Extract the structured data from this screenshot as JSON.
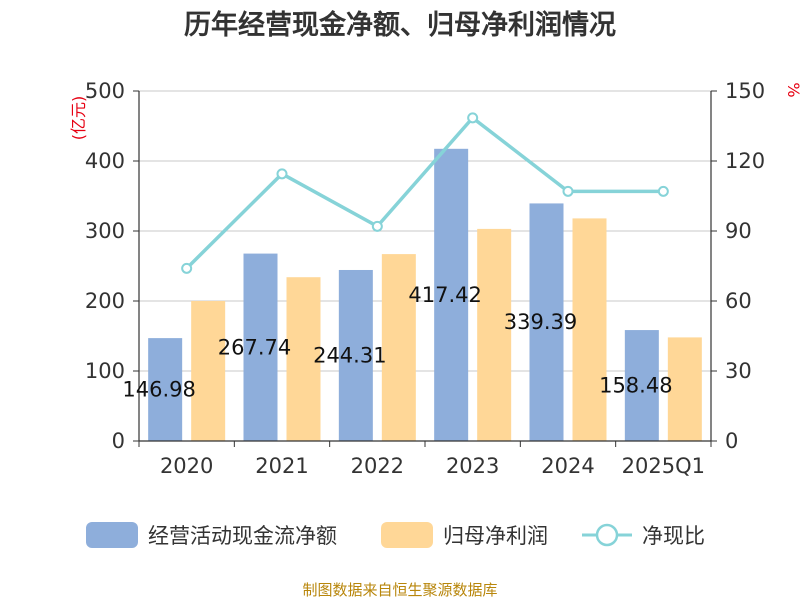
{
  "chart_data": {
    "type": "bar",
    "title": "历年经营现金净额、归母净利润情况",
    "categories": [
      "2020",
      "2021",
      "2022",
      "2023",
      "2024",
      "2025Q1"
    ],
    "series": [
      {
        "name": "经营活动现金流净额",
        "type": "bar",
        "axis": "left",
        "color": "#8eaedb",
        "values": [
          146.98,
          267.74,
          244.31,
          417.42,
          339.39,
          158.48
        ],
        "labels": [
          "146.98",
          "267.74",
          "244.31",
          "417.42",
          "339.39",
          "158.48"
        ]
      },
      {
        "name": "归母净利润",
        "type": "bar",
        "axis": "left",
        "color": "#ffd797",
        "values": [
          200,
          234,
          267,
          303,
          318,
          148
        ]
      },
      {
        "name": "净现比",
        "type": "line",
        "axis": "right",
        "color": "#86d3d8",
        "values": [
          74,
          114.5,
          92,
          138.5,
          107,
          107
        ]
      }
    ],
    "y_left": {
      "label": "(亿元)",
      "min": 0,
      "max": 500,
      "ticks": [
        "0",
        "100",
        "200",
        "300",
        "400",
        "500"
      ]
    },
    "y_right": {
      "label": "%",
      "min": 0,
      "max": 150,
      "ticks": [
        "0",
        "30",
        "60",
        "90",
        "120",
        "150"
      ]
    },
    "grid": true,
    "legend_position": "bottom"
  },
  "source": "制图数据来自恒生聚源数据库"
}
